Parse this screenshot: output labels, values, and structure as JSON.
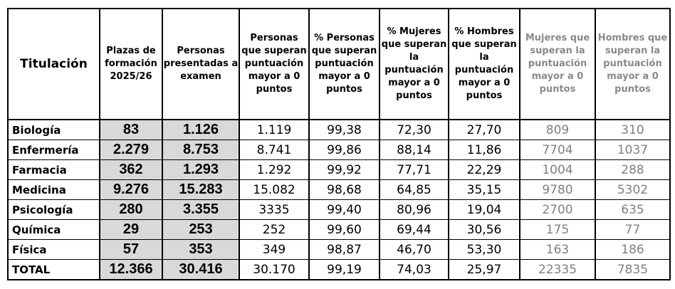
{
  "table": {
    "headers": [
      "Titulación",
      "Plazas de formación 2025/26",
      "Personas presentadas a examen",
      "Personas que superan puntuación mayor a 0 puntos",
      "% Personas que superan puntuación mayor a 0 puntos",
      "% Mujeres que superan la puntuación mayor a 0 puntos",
      "% Hombres que superan la puntuación mayor a 0 puntos",
      "Mujeres que superan la puntuación mayor a 0 puntos",
      "Hombres que superan la puntuación mayor a 0 puntos"
    ],
    "rows": [
      [
        "Biología",
        "83",
        "1.126",
        "1.119",
        "99,38",
        "72,30",
        "27,70",
        "809",
        "310"
      ],
      [
        "Enfermería",
        "2.279",
        "8.753",
        "8.741",
        "99,86",
        "88,14",
        "11,86",
        "7704",
        "1037"
      ],
      [
        "Farmacia",
        "362",
        "1.293",
        "1.292",
        "99,92",
        "77,71",
        "22,29",
        "1004",
        "288"
      ],
      [
        "Medicina",
        "9.276",
        "15.283",
        "15.082",
        "98,68",
        "64,85",
        "35,15",
        "9780",
        "5302"
      ],
      [
        "Psicología",
        "280",
        "3.355",
        "3335",
        "99,40",
        "80,96",
        "19,04",
        "2700",
        "635"
      ],
      [
        "Química",
        "29",
        "253",
        "252",
        "99,60",
        "69,44",
        "30,56",
        "175",
        "77"
      ],
      [
        "Física",
        "57",
        "353",
        "349",
        "98,87",
        "46,70",
        "53,30",
        "163",
        "186"
      ],
      [
        "TOTAL",
        "12.366",
        "30.416",
        "30.170",
        "99,19",
        "74,03",
        "25,97",
        "22335",
        "7835"
      ]
    ]
  },
  "colors": {
    "highlight_bg": "#d9d9d9",
    "grey_text": "#808080",
    "border": "#000000"
  }
}
